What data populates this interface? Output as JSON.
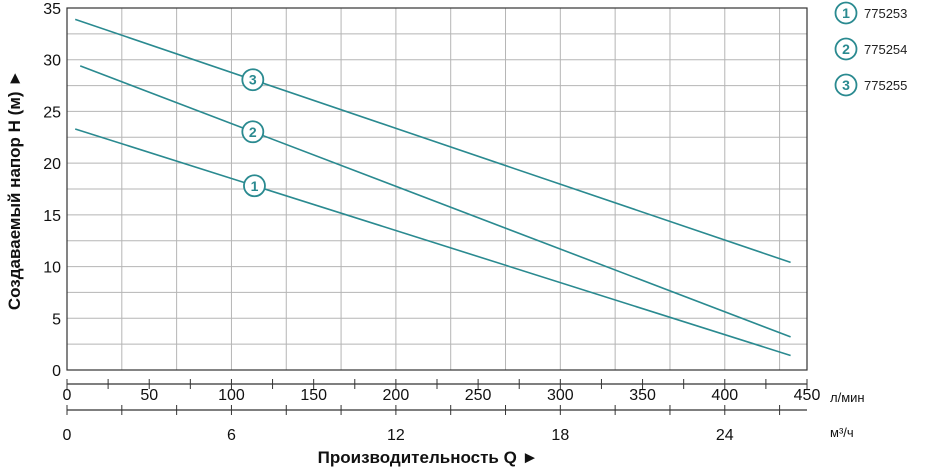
{
  "chart_data": {
    "type": "line",
    "ylabel": "Создаваемый напор H (м) ►",
    "xlabel": "Производительность Q ►",
    "x_unit_primary": "л/мин",
    "x_unit_secondary": "м³/ч",
    "xlim": [
      0,
      450
    ],
    "ylim": [
      0,
      35
    ],
    "x_ticks": [
      "0",
      "50",
      "100",
      "150",
      "200",
      "250",
      "300",
      "350",
      "400",
      "450"
    ],
    "x_ticks_secondary": [
      "0",
      "6",
      "12",
      "18",
      "24"
    ],
    "x_ticks_secondary_values": [
      0,
      6,
      12,
      18,
      24
    ],
    "y_ticks": [
      "0",
      "5",
      "10",
      "15",
      "20",
      "25",
      "30",
      "35"
    ],
    "grid": true,
    "line_color": "#2a8a90",
    "series": [
      {
        "name": "775253",
        "marker": "1",
        "x": [
          5,
          440
        ],
        "y": [
          23.3,
          1.4
        ],
        "marker_x": 114
      },
      {
        "name": "775254",
        "marker": "2",
        "x": [
          8,
          440
        ],
        "y": [
          29.4,
          3.2
        ],
        "marker_x": 113
      },
      {
        "name": "775255",
        "marker": "3",
        "x": [
          5,
          440
        ],
        "y": [
          33.9,
          10.4
        ],
        "marker_x": 113
      }
    ],
    "legend_position": "right"
  }
}
